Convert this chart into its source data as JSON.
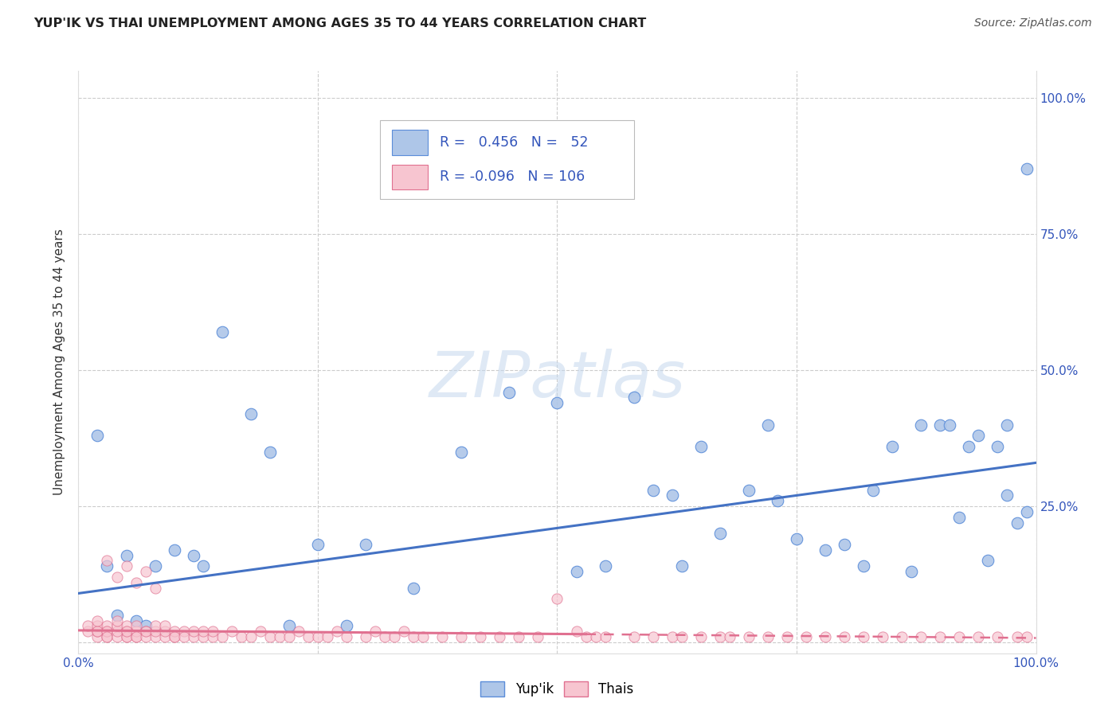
{
  "title": "YUP'IK VS THAI UNEMPLOYMENT AMONG AGES 35 TO 44 YEARS CORRELATION CHART",
  "source": "Source: ZipAtlas.com",
  "ylabel": "Unemployment Among Ages 35 to 44 years",
  "xlim": [
    0.0,
    1.0
  ],
  "ylim": [
    -0.02,
    1.05
  ],
  "blue_R": 0.456,
  "blue_N": 52,
  "pink_R": -0.096,
  "pink_N": 106,
  "blue_color": "#aec6e8",
  "blue_edge_color": "#5b8dd9",
  "blue_line_color": "#4472c4",
  "pink_color": "#f7c5d0",
  "pink_edge_color": "#e07090",
  "pink_line_color": "#e07090",
  "background_color": "#ffffff",
  "grid_color": "#cccccc",
  "legend_R_color": "#3355bb",
  "title_color": "#222222",
  "source_color": "#555555",
  "ylabel_color": "#333333",
  "tick_color": "#3355bb",
  "blue_scatter_x": [
    0.02,
    0.04,
    0.06,
    0.07,
    0.08,
    0.1,
    0.12,
    0.13,
    0.15,
    0.18,
    0.2,
    0.22,
    0.25,
    0.28,
    0.3,
    0.35,
    0.4,
    0.45,
    0.5,
    0.52,
    0.55,
    0.58,
    0.6,
    0.62,
    0.63,
    0.65,
    0.67,
    0.7,
    0.72,
    0.73,
    0.75,
    0.78,
    0.8,
    0.82,
    0.83,
    0.85,
    0.87,
    0.88,
    0.9,
    0.91,
    0.92,
    0.93,
    0.94,
    0.95,
    0.96,
    0.97,
    0.97,
    0.98,
    0.99,
    0.99,
    0.03,
    0.05
  ],
  "blue_scatter_y": [
    0.38,
    0.05,
    0.04,
    0.03,
    0.14,
    0.17,
    0.16,
    0.14,
    0.57,
    0.42,
    0.35,
    0.03,
    0.18,
    0.03,
    0.18,
    0.1,
    0.35,
    0.46,
    0.44,
    0.13,
    0.14,
    0.45,
    0.28,
    0.27,
    0.14,
    0.36,
    0.2,
    0.28,
    0.4,
    0.26,
    0.19,
    0.17,
    0.18,
    0.14,
    0.28,
    0.36,
    0.13,
    0.4,
    0.4,
    0.4,
    0.23,
    0.36,
    0.38,
    0.15,
    0.36,
    0.4,
    0.27,
    0.22,
    0.87,
    0.24,
    0.14,
    0.16
  ],
  "pink_scatter_x": [
    0.01,
    0.01,
    0.02,
    0.02,
    0.02,
    0.02,
    0.02,
    0.03,
    0.03,
    0.03,
    0.03,
    0.03,
    0.04,
    0.04,
    0.04,
    0.04,
    0.05,
    0.05,
    0.05,
    0.05,
    0.05,
    0.06,
    0.06,
    0.06,
    0.06,
    0.07,
    0.07,
    0.07,
    0.08,
    0.08,
    0.08,
    0.09,
    0.09,
    0.09,
    0.1,
    0.1,
    0.1,
    0.11,
    0.11,
    0.12,
    0.12,
    0.13,
    0.13,
    0.14,
    0.14,
    0.15,
    0.16,
    0.17,
    0.18,
    0.19,
    0.2,
    0.21,
    0.22,
    0.23,
    0.24,
    0.25,
    0.26,
    0.27,
    0.28,
    0.3,
    0.31,
    0.32,
    0.33,
    0.34,
    0.35,
    0.36,
    0.38,
    0.4,
    0.42,
    0.44,
    0.46,
    0.48,
    0.5,
    0.52,
    0.53,
    0.54,
    0.55,
    0.58,
    0.6,
    0.62,
    0.63,
    0.65,
    0.67,
    0.68,
    0.7,
    0.72,
    0.74,
    0.76,
    0.78,
    0.8,
    0.82,
    0.84,
    0.86,
    0.88,
    0.9,
    0.92,
    0.94,
    0.96,
    0.98,
    0.99,
    0.03,
    0.04,
    0.05,
    0.06,
    0.07,
    0.08
  ],
  "pink_scatter_y": [
    0.02,
    0.03,
    0.01,
    0.02,
    0.03,
    0.02,
    0.04,
    0.01,
    0.02,
    0.03,
    0.02,
    0.01,
    0.01,
    0.02,
    0.03,
    0.04,
    0.01,
    0.02,
    0.01,
    0.03,
    0.02,
    0.01,
    0.02,
    0.03,
    0.01,
    0.02,
    0.01,
    0.02,
    0.01,
    0.02,
    0.03,
    0.01,
    0.02,
    0.03,
    0.01,
    0.02,
    0.01,
    0.02,
    0.01,
    0.01,
    0.02,
    0.01,
    0.02,
    0.01,
    0.02,
    0.01,
    0.02,
    0.01,
    0.01,
    0.02,
    0.01,
    0.01,
    0.01,
    0.02,
    0.01,
    0.01,
    0.01,
    0.02,
    0.01,
    0.01,
    0.02,
    0.01,
    0.01,
    0.02,
    0.01,
    0.01,
    0.01,
    0.01,
    0.01,
    0.01,
    0.01,
    0.01,
    0.08,
    0.02,
    0.01,
    0.01,
    0.01,
    0.01,
    0.01,
    0.01,
    0.01,
    0.01,
    0.01,
    0.01,
    0.01,
    0.01,
    0.01,
    0.01,
    0.01,
    0.01,
    0.01,
    0.01,
    0.01,
    0.01,
    0.01,
    0.01,
    0.01,
    0.01,
    0.01,
    0.01,
    0.15,
    0.12,
    0.14,
    0.11,
    0.13,
    0.1
  ]
}
